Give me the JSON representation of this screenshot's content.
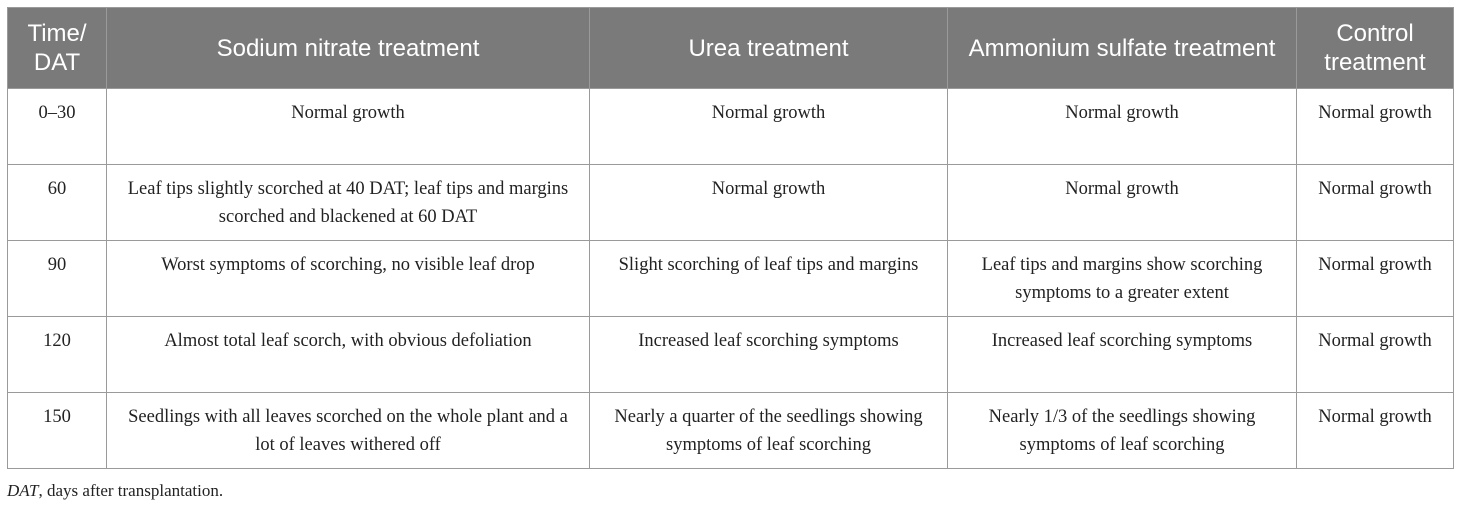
{
  "table": {
    "headers": [
      "Time/ DAT",
      "Sodium nitrate treatment",
      "Urea treatment",
      "Ammonium sulfate treatment",
      "Control treatment"
    ],
    "rows": [
      [
        "0–30",
        "Normal growth",
        "Normal growth",
        "Normal growth",
        "Normal growth"
      ],
      [
        "60",
        "Leaf tips slightly scorched at 40 DAT; leaf tips and margins scorched and blackened at 60 DAT",
        "Normal growth",
        "Normal growth",
        "Normal growth"
      ],
      [
        "90",
        "Worst symptoms of scorching, no visible leaf drop",
        "Slight scorching of leaf tips and margins",
        "Leaf tips and margins show scorching symptoms to a greater extent",
        "Normal growth"
      ],
      [
        "120",
        "Almost total leaf scorch, with obvious defoliation",
        "Increased leaf scorching symptoms",
        "Increased leaf scorching symptoms",
        "Normal growth"
      ],
      [
        "150",
        "Seedlings with all leaves scorched on the whole plant and a lot of leaves withered off",
        "Nearly a quarter of the seedlings showing symptoms of leaf scorching",
        "Nearly 1/3 of the seedlings showing symptoms of leaf scorching",
        "Normal growth"
      ]
    ],
    "header_bg": "#7a7a7a",
    "header_color": "#ffffff",
    "border_color": "#9a9a9a"
  },
  "footnote": {
    "abbr": "DAT",
    "text": ", days after transplantation."
  }
}
